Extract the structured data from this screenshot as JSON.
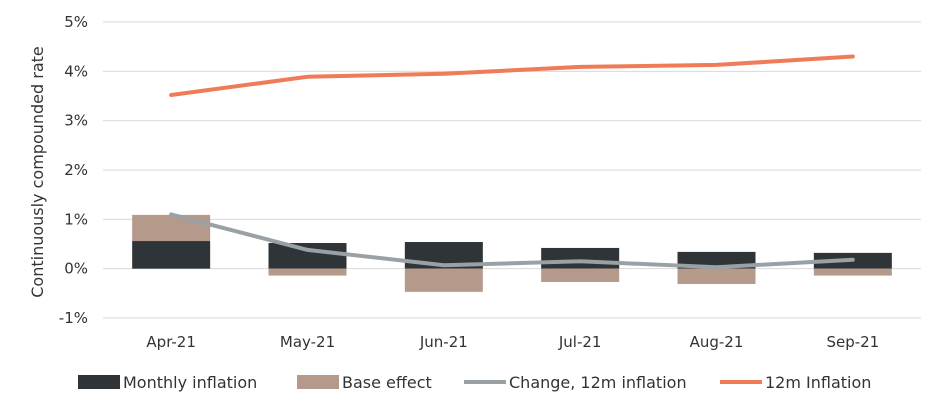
{
  "chart_data": {
    "type": "bar",
    "ylabel": "Continuously compounded rate",
    "xlabel": "",
    "categories": [
      "Apr-21",
      "May-21",
      "Jun-21",
      "Jul-21",
      "Aug-21",
      "Sep-21"
    ],
    "ylim": [
      -1,
      5
    ],
    "yticks": [
      -1,
      0,
      1,
      2,
      3,
      4,
      5
    ],
    "ytick_labels": [
      "-1%",
      "0%",
      "1%",
      "2%",
      "3%",
      "4%",
      "5%"
    ],
    "grid": true,
    "legend_position": "bottom",
    "series": [
      {
        "name": "Monthly inflation",
        "kind": "bar",
        "color": "#2e3438",
        "values": [
          0.56,
          0.52,
          0.54,
          0.42,
          0.34,
          0.32
        ]
      },
      {
        "name": "Base effect",
        "kind": "bar",
        "color": "#b5998a",
        "values": [
          0.53,
          -0.14,
          -0.47,
          -0.27,
          -0.31,
          -0.14
        ]
      },
      {
        "name": "Change, 12m inflation",
        "kind": "line",
        "color": "#9aa1a5",
        "values": [
          1.1,
          0.38,
          0.07,
          0.15,
          0.03,
          0.18
        ]
      },
      {
        "name": "12m Inflation",
        "kind": "line",
        "color": "#ef7b58",
        "values": [
          3.52,
          3.89,
          3.95,
          4.09,
          4.13,
          4.3
        ]
      }
    ]
  }
}
